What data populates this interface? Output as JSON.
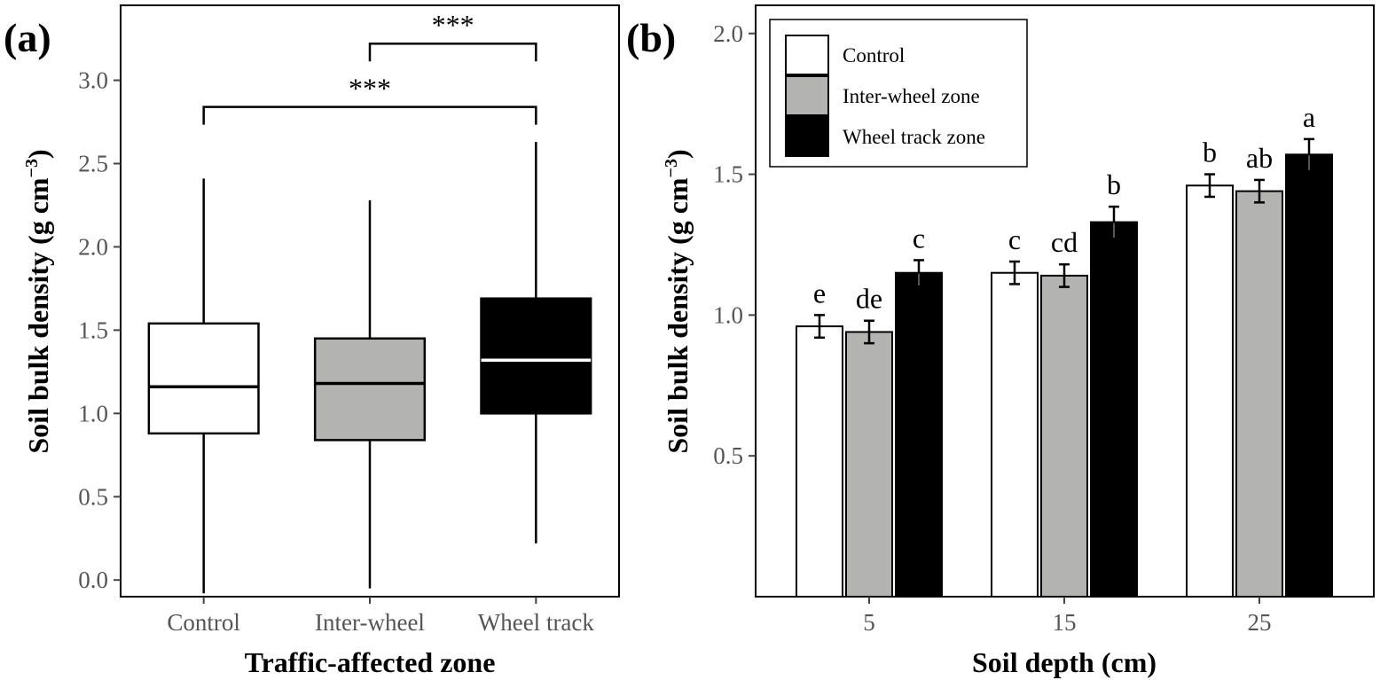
{
  "chart_data": [
    {
      "panel": "(a)",
      "type": "box",
      "xlabel": "Traffic-affected zone",
      "ylabel": "Soil bulk density (g cm",
      "ylabel_sup": "−3",
      "ylabel_close": ")",
      "ylim": [
        -0.1,
        3.45
      ],
      "yticks": [
        "0.0",
        "0.5",
        "1.0",
        "1.5",
        "2.0",
        "2.5",
        "3.0"
      ],
      "categories": [
        "Control",
        "Inter-wheel",
        "Wheel track"
      ],
      "colors": [
        "#ffffff",
        "#b3b3b2",
        "#000000"
      ],
      "median_colors": [
        "#000000",
        "#000000",
        "#ffffff"
      ],
      "boxes": [
        {
          "whisker_low": -0.08,
          "q1": 0.88,
          "median": 1.16,
          "q3": 1.54,
          "whisker_high": 2.41
        },
        {
          "whisker_low": -0.05,
          "q1": 0.84,
          "median": 1.18,
          "q3": 1.45,
          "whisker_high": 2.28
        },
        {
          "whisker_low": 0.22,
          "q1": 1.0,
          "median": 1.32,
          "q3": 1.69,
          "whisker_high": 2.63
        }
      ],
      "annotations": [
        {
          "from": 1,
          "to": 2,
          "y": 3.22,
          "label": "***"
        },
        {
          "from": 0,
          "to": 2,
          "y": 2.84,
          "label": "***"
        }
      ]
    },
    {
      "panel": "(b)",
      "type": "bar",
      "xlabel": "Soil depth (cm)",
      "ylabel": "Soil bulk density (g cm",
      "ylabel_sup": "−3",
      "ylabel_close": ")",
      "ylim": [
        0,
        2.1
      ],
      "yticks": [
        "0.5",
        "1.0",
        "1.5",
        "2.0"
      ],
      "categories": [
        "5",
        "15",
        "25"
      ],
      "series": [
        {
          "name": "Control",
          "color": "#ffffff",
          "values": [
            0.96,
            1.15,
            1.46
          ],
          "errors": [
            0.04,
            0.04,
            0.04
          ],
          "letters": [
            "e",
            "c",
            "b"
          ]
        },
        {
          "name": "Inter-wheel zone",
          "color": "#b3b3b2",
          "values": [
            0.94,
            1.14,
            1.44
          ],
          "errors": [
            0.04,
            0.04,
            0.04
          ],
          "letters": [
            "de",
            "cd",
            "ab"
          ]
        },
        {
          "name": "Wheel track zone",
          "color": "#000000",
          "values": [
            1.15,
            1.33,
            1.57
          ],
          "errors": [
            0.045,
            0.055,
            0.055
          ],
          "letters": [
            "c",
            "b",
            "a"
          ]
        }
      ],
      "legend_position": "top-left"
    }
  ]
}
